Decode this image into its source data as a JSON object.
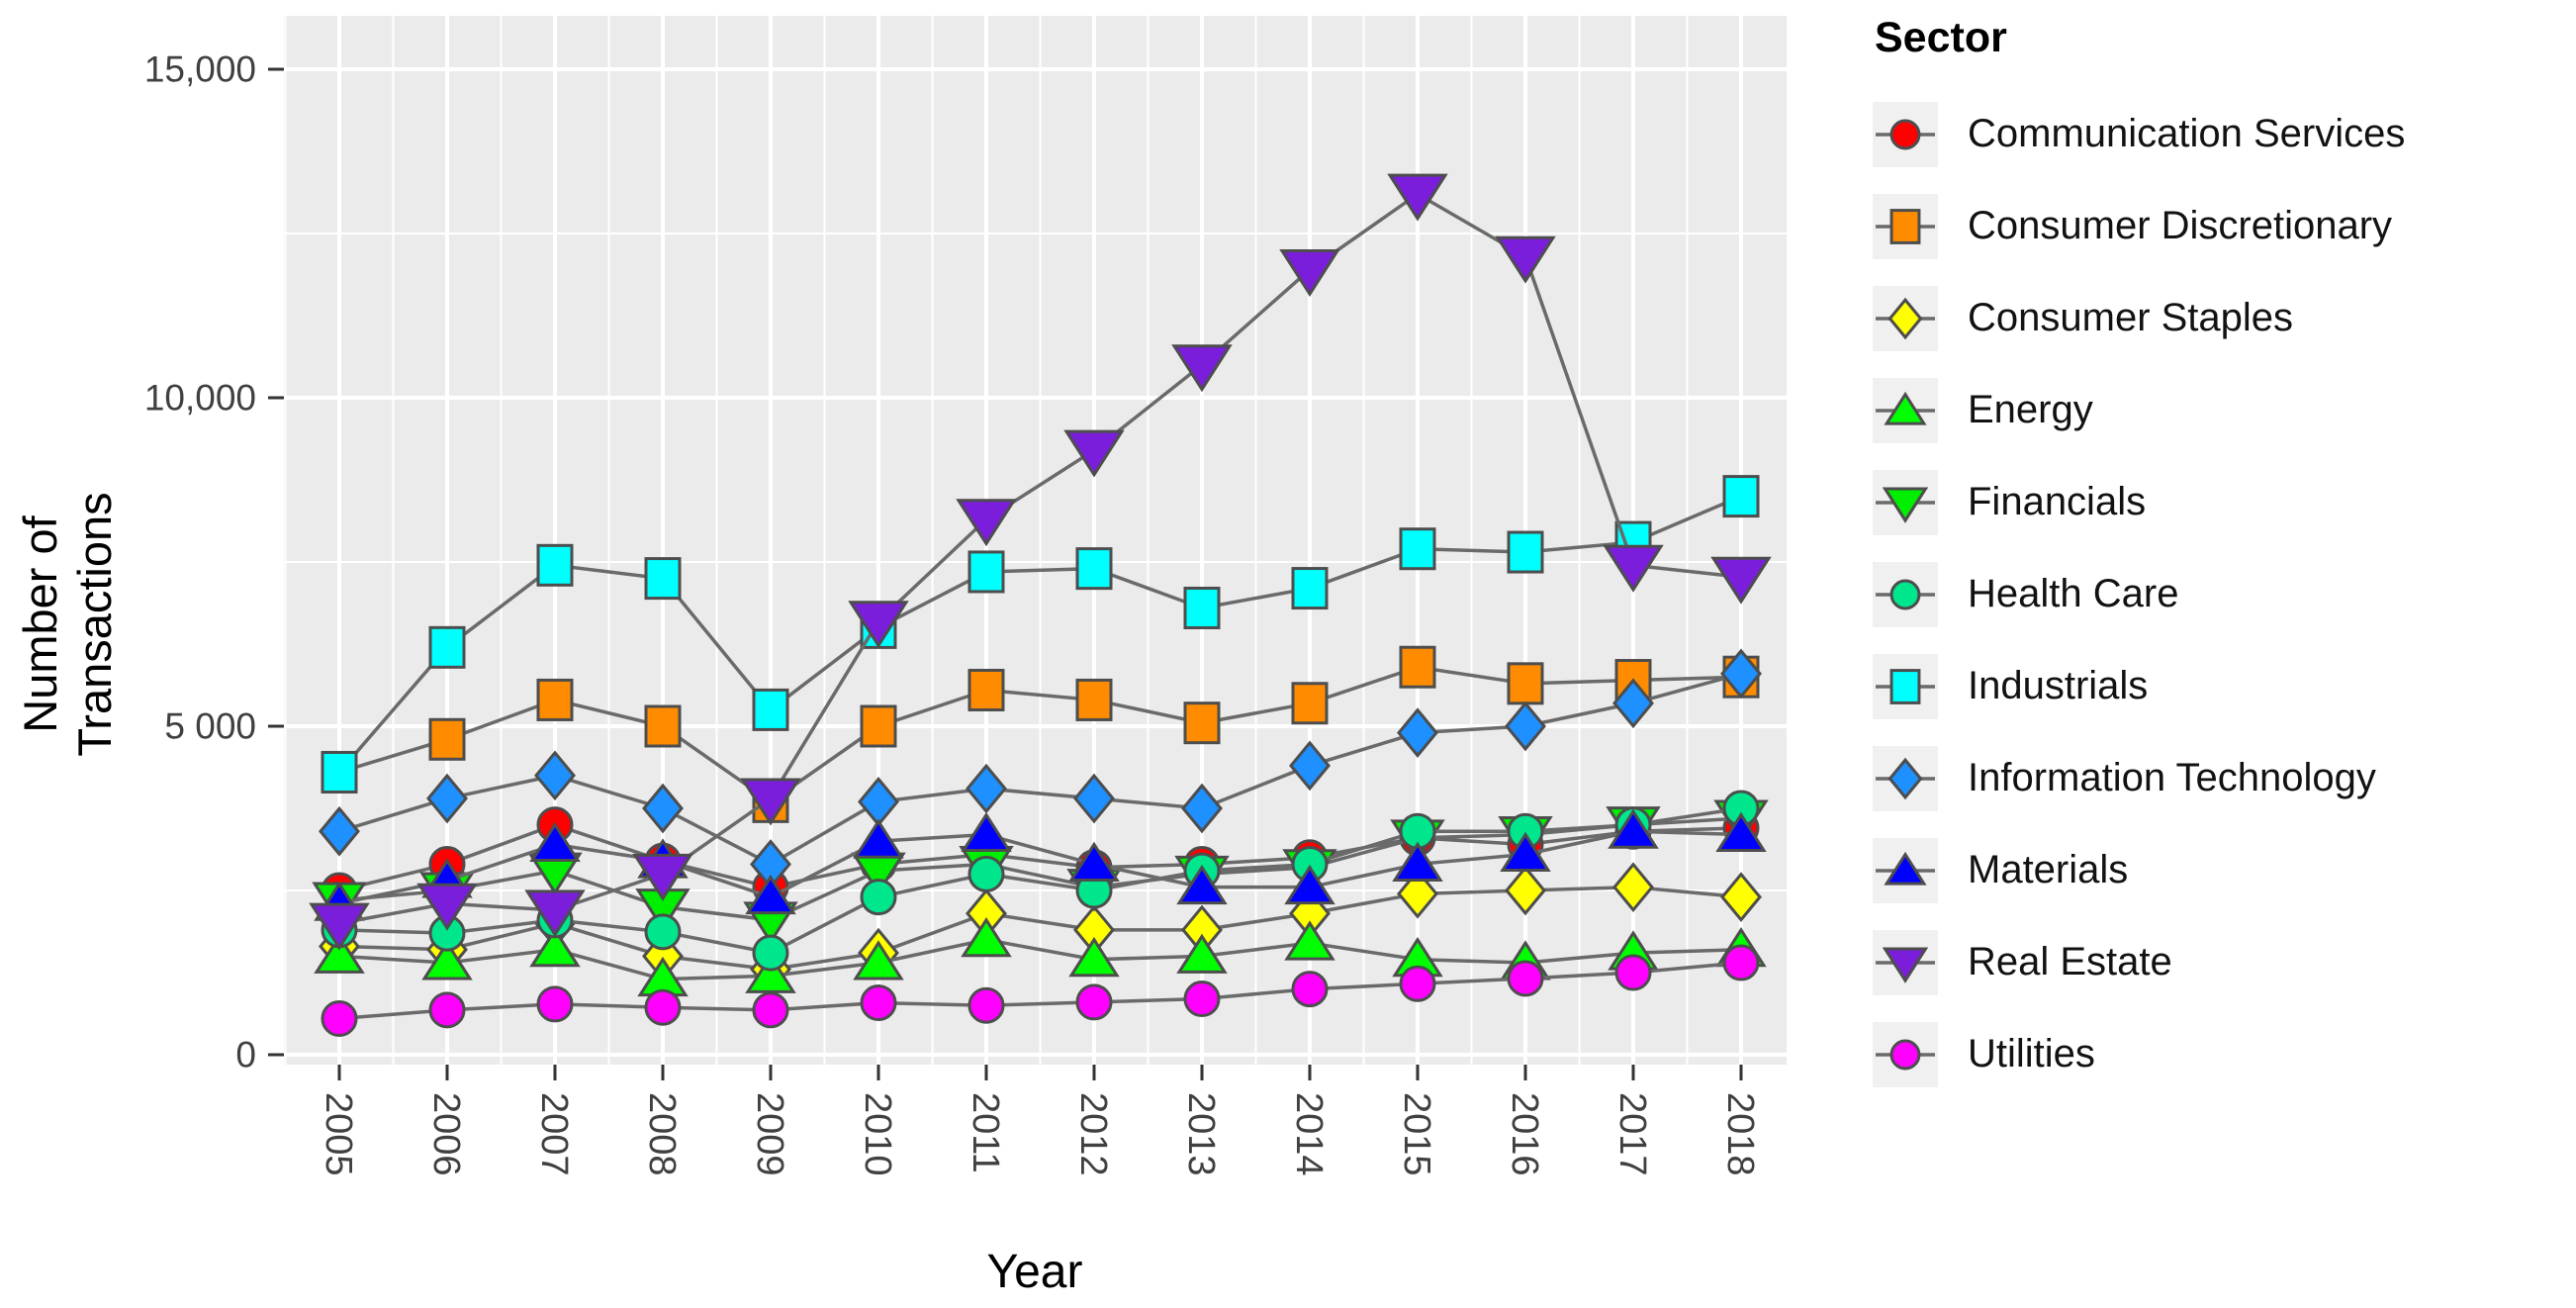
{
  "chart_data": {
    "type": "line",
    "xlabel": "Year",
    "ylabel": "Number of Transactions",
    "legend_title": "Sector",
    "legend_position": "right",
    "grid": "major+minor",
    "panel_background": "#ebebeb",
    "line_color": "#6a6a6a",
    "marker_edge_color": "#4d4d4d",
    "ylim": [
      0,
      15800
    ],
    "x": [
      2005,
      2006,
      2007,
      2008,
      2009,
      2010,
      2011,
      2012,
      2013,
      2014,
      2015,
      2016,
      2017,
      2018
    ],
    "x_tick_labels": [
      "2005",
      "2006",
      "2007",
      "2008",
      "2009",
      "2010",
      "2011",
      "2012",
      "2013",
      "2014",
      "2015",
      "2016",
      "2017",
      "2018"
    ],
    "y_ticks": [
      {
        "value": 0,
        "label": "0"
      },
      {
        "value": 5000,
        "label": "5 000"
      },
      {
        "value": 10000,
        "label": "10,000"
      },
      {
        "value": 15000,
        "label": "15,000"
      }
    ],
    "series": [
      {
        "label": "Communication Services",
        "marker": "circle",
        "color": "#FF0000",
        "values": [
          2500,
          2900,
          3500,
          2950,
          2550,
          2900,
          3050,
          2850,
          2900,
          3000,
          3300,
          3200,
          3400,
          3450
        ]
      },
      {
        "label": "Consumer Discretionary",
        "marker": "square",
        "color": "#FF8C00",
        "values": [
          4300,
          4800,
          5400,
          5000,
          3850,
          5000,
          5550,
          5400,
          5050,
          5350,
          5900,
          5650,
          5700,
          5750
        ]
      },
      {
        "label": "Consumer Staples",
        "marker": "diamond",
        "color": "#FFFF00",
        "values": [
          1650,
          1600,
          2000,
          1500,
          1300,
          1550,
          2150,
          1900,
          1900,
          2150,
          2450,
          2500,
          2550,
          2400
        ]
      },
      {
        "label": "Energy",
        "marker": "triangle-up",
        "color": "#00FF00",
        "values": [
          1500,
          1400,
          1600,
          1150,
          1200,
          1400,
          1750,
          1450,
          1500,
          1700,
          1450,
          1400,
          1550,
          1600
        ]
      },
      {
        "label": "Financials",
        "marker": "triangle-down",
        "color": "#00EE00",
        "values": [
          2350,
          2500,
          2800,
          2250,
          2050,
          2800,
          2900,
          2550,
          2750,
          2850,
          3300,
          3350,
          3500,
          3600
        ]
      },
      {
        "label": "Health Care",
        "marker": "circle",
        "color": "#00E68C",
        "values": [
          1900,
          1850,
          2050,
          1870,
          1550,
          2400,
          2750,
          2500,
          2800,
          2900,
          3400,
          3400,
          3500,
          3750
        ]
      },
      {
        "label": "Industrials",
        "marker": "square",
        "color": "#00FFFF",
        "values": [
          4300,
          6200,
          7450,
          7250,
          5250,
          6500,
          7350,
          7400,
          6800,
          7100,
          7700,
          7650,
          7800,
          8500
        ]
      },
      {
        "label": "Information Technology",
        "marker": "diamond",
        "color": "#1E90FF",
        "values": [
          3400,
          3900,
          4250,
          3750,
          2900,
          3850,
          4050,
          3900,
          3750,
          4400,
          4900,
          5000,
          5350,
          5800
        ]
      },
      {
        "label": "Materials",
        "marker": "triangle-up",
        "color": "#0000FF",
        "values": [
          2300,
          2650,
          3200,
          2950,
          2400,
          3250,
          3350,
          2900,
          2550,
          2550,
          2900,
          3050,
          3400,
          3350
        ]
      },
      {
        "label": "Real Estate",
        "marker": "triangle-down",
        "color": "#7A1EDC",
        "values": [
          2000,
          2300,
          2200,
          2750,
          3900,
          6600,
          8150,
          9200,
          10500,
          11950,
          13100,
          12150,
          7450,
          7270
        ]
      },
      {
        "label": "Utilities",
        "marker": "circle",
        "color": "#FF00FF",
        "values": [
          550,
          680,
          770,
          720,
          680,
          790,
          750,
          800,
          850,
          1000,
          1080,
          1160,
          1250,
          1400
        ]
      }
    ]
  }
}
